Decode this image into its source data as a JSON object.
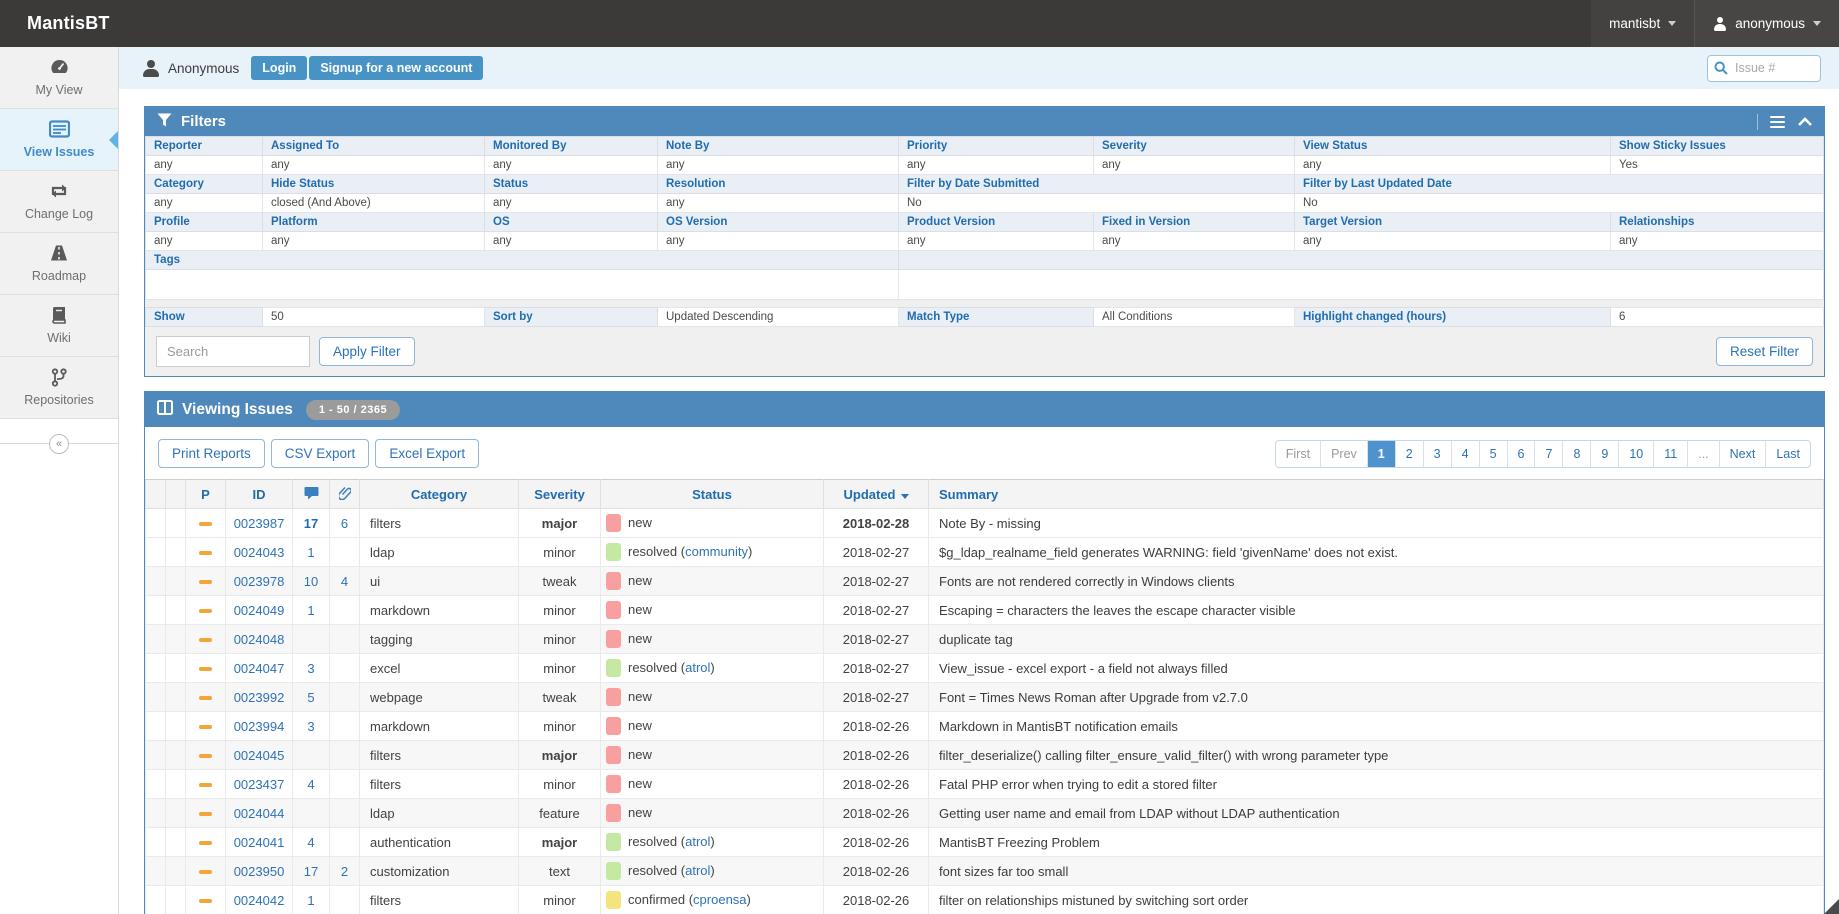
{
  "colors": {
    "topbar": "#3b3a39",
    "accent_blue": "#4f88ba",
    "link_blue": "#2d72b8",
    "button_blue": "#4793c6",
    "status_new": "#f8a0a0",
    "status_resolved": "#c5e8a2",
    "status_confirmed": "#f3e57e",
    "priority_dash": "#f2a63a"
  },
  "topbar": {
    "brand": "MantisBT",
    "project_menu": "mantisbt",
    "user_menu": "anonymous"
  },
  "sidebar": {
    "items": [
      {
        "label": "My View",
        "icon": "dashboard-icon",
        "active": "false"
      },
      {
        "label": "View Issues",
        "icon": "view-issues-icon",
        "active": "true"
      },
      {
        "label": "Change Log",
        "icon": "change-log-icon",
        "active": "false"
      },
      {
        "label": "Roadmap",
        "icon": "roadmap-icon",
        "active": "false"
      },
      {
        "label": "Wiki",
        "icon": "wiki-icon",
        "active": "false"
      },
      {
        "label": "Repositories",
        "icon": "repositories-icon",
        "active": "false"
      }
    ],
    "collapse_glyph": "«"
  },
  "login_bar": {
    "username": "Anonymous",
    "login_label": "Login",
    "signup_label": "Signup for a new account",
    "issue_search_placeholder": "Issue #"
  },
  "filters": {
    "title": "Filters",
    "row1_labels": [
      "Reporter",
      "Assigned To",
      "Monitored By",
      "Note By",
      "Priority",
      "Severity",
      "View Status",
      "Show Sticky Issues"
    ],
    "row1_values": [
      "any",
      "any",
      "any",
      "any",
      "any",
      "any",
      "any",
      "Yes"
    ],
    "row2_labels": [
      "Category",
      "Hide Status",
      "Status",
      "Resolution",
      "Filter by Date Submitted",
      "Filter by Last Updated Date"
    ],
    "row2_values": [
      "any",
      "closed (And Above)",
      "any",
      "any",
      "No",
      "No"
    ],
    "row3_labels": [
      "Profile",
      "Platform",
      "OS",
      "OS Version",
      "Product Version",
      "Fixed in Version",
      "Target Version",
      "Relationships"
    ],
    "row3_values": [
      "any",
      "any",
      "any",
      "any",
      "any",
      "any",
      "any",
      "any"
    ],
    "tags_label": "Tags",
    "show": [
      {
        "label": "Show",
        "value": "50"
      },
      {
        "label": "Sort by",
        "value": "Updated Descending"
      },
      {
        "label": "Match Type",
        "value": "All Conditions"
      },
      {
        "label": "Highlight changed (hours)",
        "value": "6"
      }
    ],
    "search_placeholder": "Search",
    "apply_label": "Apply Filter",
    "reset_label": "Reset Filter"
  },
  "issues": {
    "title": "Viewing Issues",
    "range_badge": "1 - 50 / 2365",
    "buttons": [
      {
        "label": "Print Reports"
      },
      {
        "label": "CSV Export"
      },
      {
        "label": "Excel Export"
      }
    ],
    "pagination": [
      {
        "label": "First",
        "state": "muted"
      },
      {
        "label": "Prev",
        "state": "muted"
      },
      {
        "label": "1",
        "state": "current"
      },
      {
        "label": "2",
        "state": "link"
      },
      {
        "label": "3",
        "state": "link"
      },
      {
        "label": "4",
        "state": "link"
      },
      {
        "label": "5",
        "state": "link"
      },
      {
        "label": "6",
        "state": "link"
      },
      {
        "label": "7",
        "state": "link"
      },
      {
        "label": "8",
        "state": "link"
      },
      {
        "label": "9",
        "state": "link"
      },
      {
        "label": "10",
        "state": "link"
      },
      {
        "label": "11",
        "state": "link"
      },
      {
        "label": "...",
        "state": "muted"
      },
      {
        "label": "Next",
        "state": "link"
      },
      {
        "label": "Last",
        "state": "link"
      }
    ],
    "columns": {
      "p": "P",
      "id": "ID",
      "category": "Category",
      "severity": "Severity",
      "status": "Status",
      "updated": "Updated",
      "summary": "Summary"
    },
    "paren_open": "(",
    "paren_close": ")",
    "rows": [
      {
        "id": "0023987",
        "comments": "17",
        "comments_bold": "1",
        "attachments": "6",
        "category": "filters",
        "severity": "major",
        "severity_bold": "1",
        "chip": "new",
        "status": "new",
        "handler": "",
        "updated": "2018-02-28",
        "updated_bold": "1",
        "summary": "Note By - missing"
      },
      {
        "id": "0024043",
        "comments": "1",
        "comments_bold": "",
        "attachments": "",
        "category": "ldap",
        "severity": "minor",
        "severity_bold": "",
        "chip": "resolved",
        "status": "resolved",
        "handler": "community",
        "updated": "2018-02-27",
        "updated_bold": "",
        "summary": "$g_ldap_realname_field generates WARNING: field 'givenName' does not exist."
      },
      {
        "id": "0023978",
        "comments": "10",
        "comments_bold": "",
        "attachments": "4",
        "category": "ui",
        "severity": "tweak",
        "severity_bold": "",
        "chip": "new",
        "status": "new",
        "handler": "",
        "updated": "2018-02-27",
        "updated_bold": "",
        "summary": "Fonts are not rendered correctly in Windows clients"
      },
      {
        "id": "0024049",
        "comments": "1",
        "comments_bold": "",
        "attachments": "",
        "category": "markdown",
        "severity": "minor",
        "severity_bold": "",
        "chip": "new",
        "status": "new",
        "handler": "",
        "updated": "2018-02-27",
        "updated_bold": "",
        "summary": "Escaping = characters the leaves the escape character visible"
      },
      {
        "id": "0024048",
        "comments": "",
        "comments_bold": "",
        "attachments": "",
        "category": "tagging",
        "severity": "minor",
        "severity_bold": "",
        "chip": "new",
        "status": "new",
        "handler": "",
        "updated": "2018-02-27",
        "updated_bold": "",
        "summary": "duplicate tag"
      },
      {
        "id": "0024047",
        "comments": "3",
        "comments_bold": "",
        "attachments": "",
        "category": "excel",
        "severity": "minor",
        "severity_bold": "",
        "chip": "resolved",
        "status": "resolved",
        "handler": "atrol",
        "updated": "2018-02-27",
        "updated_bold": "",
        "summary": "View_issue - excel export - a field not always filled"
      },
      {
        "id": "0023992",
        "comments": "5",
        "comments_bold": "",
        "attachments": "",
        "category": "webpage",
        "severity": "tweak",
        "severity_bold": "",
        "chip": "new",
        "status": "new",
        "handler": "",
        "updated": "2018-02-27",
        "updated_bold": "",
        "summary": "Font = Times News Roman after Upgrade from v2.7.0"
      },
      {
        "id": "0023994",
        "comments": "3",
        "comments_bold": "",
        "attachments": "",
        "category": "markdown",
        "severity": "minor",
        "severity_bold": "",
        "chip": "new",
        "status": "new",
        "handler": "",
        "updated": "2018-02-26",
        "updated_bold": "",
        "summary": "Markdown in MantisBT notification emails"
      },
      {
        "id": "0024045",
        "comments": "",
        "comments_bold": "",
        "attachments": "",
        "category": "filters",
        "severity": "major",
        "severity_bold": "1",
        "chip": "new",
        "status": "new",
        "handler": "",
        "updated": "2018-02-26",
        "updated_bold": "",
        "summary": "filter_deserialize() calling filter_ensure_valid_filter() with wrong parameter type"
      },
      {
        "id": "0023437",
        "comments": "4",
        "comments_bold": "",
        "attachments": "",
        "category": "filters",
        "severity": "minor",
        "severity_bold": "",
        "chip": "new",
        "status": "new",
        "handler": "",
        "updated": "2018-02-26",
        "updated_bold": "",
        "summary": "Fatal PHP error when trying to edit a stored filter"
      },
      {
        "id": "0024044",
        "comments": "",
        "comments_bold": "",
        "attachments": "",
        "category": "ldap",
        "severity": "feature",
        "severity_bold": "",
        "chip": "new",
        "status": "new",
        "handler": "",
        "updated": "2018-02-26",
        "updated_bold": "",
        "summary": "Getting user name and email from LDAP without LDAP authentication"
      },
      {
        "id": "0024041",
        "comments": "4",
        "comments_bold": "",
        "attachments": "",
        "category": "authentication",
        "severity": "major",
        "severity_bold": "1",
        "chip": "resolved",
        "status": "resolved",
        "handler": "atrol",
        "updated": "2018-02-26",
        "updated_bold": "",
        "summary": "MantisBT Freezing Problem"
      },
      {
        "id": "0023950",
        "comments": "17",
        "comments_bold": "",
        "attachments": "2",
        "category": "customization",
        "severity": "text",
        "severity_bold": "",
        "chip": "resolved",
        "status": "resolved",
        "handler": "atrol",
        "updated": "2018-02-26",
        "updated_bold": "",
        "summary": "font sizes far too small"
      },
      {
        "id": "0024042",
        "comments": "1",
        "comments_bold": "",
        "attachments": "",
        "category": "filters",
        "severity": "minor",
        "severity_bold": "",
        "chip": "confirmed",
        "status": "confirmed",
        "handler": "cproensa",
        "updated": "2018-02-26",
        "updated_bold": "",
        "summary": "filter on relationships mistuned by switching sort order"
      }
    ],
    "partial_row": {
      "chip": "resolved"
    }
  }
}
